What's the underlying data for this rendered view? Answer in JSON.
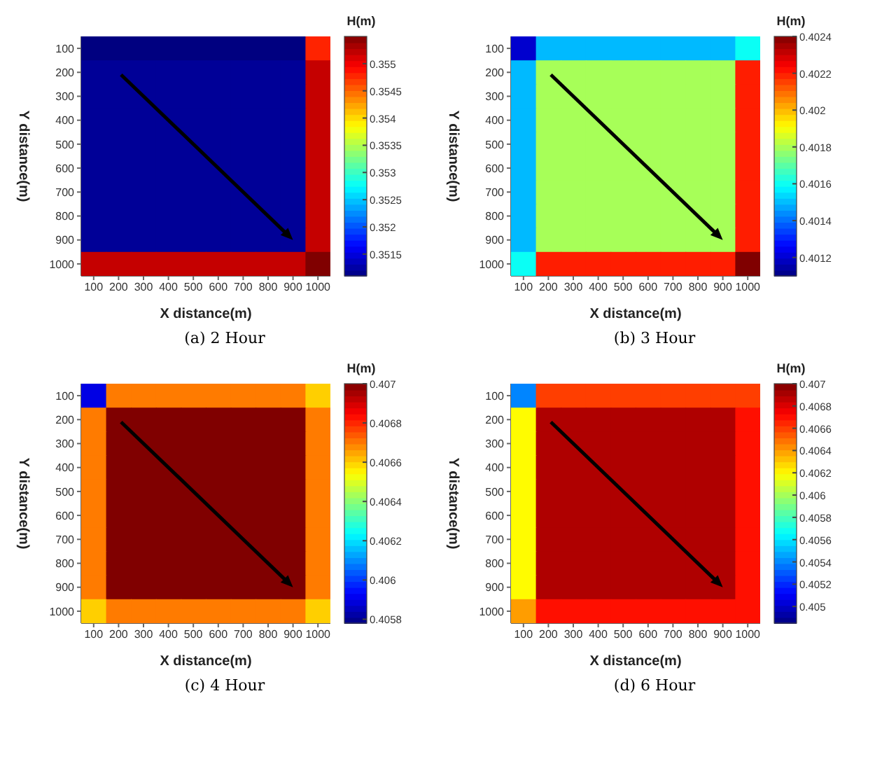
{
  "chart_data": [
    {
      "type": "heatmap",
      "title": "(a) 2 Hour",
      "xlabel": "X distance(m)",
      "ylabel": "Y distance(m)",
      "clabel": "H(m)",
      "categories": [
        "100",
        "200",
        "300",
        "400",
        "500",
        "600",
        "700",
        "800",
        "900",
        "1000"
      ],
      "y_categories": [
        "100",
        "200",
        "300",
        "400",
        "500",
        "600",
        "700",
        "800",
        "900",
        "1000"
      ],
      "clim": [
        0.3511,
        0.3555
      ],
      "cticks": [
        0.3515,
        0.352,
        0.3525,
        0.353,
        0.3535,
        0.354,
        0.3545,
        0.355
      ],
      "cells": [
        [
          0.3511,
          0.3511,
          0.3511,
          0.3511,
          0.3511,
          0.3511,
          0.3511,
          0.3511,
          0.3511,
          0.3548
        ],
        [
          0.3512,
          0.3512,
          0.3512,
          0.3512,
          0.3512,
          0.3512,
          0.3512,
          0.3512,
          0.3512,
          0.3552
        ],
        [
          0.3512,
          0.3512,
          0.3512,
          0.3512,
          0.3512,
          0.3512,
          0.3512,
          0.3512,
          0.3512,
          0.3552
        ],
        [
          0.3512,
          0.3512,
          0.3512,
          0.3512,
          0.3512,
          0.3512,
          0.3512,
          0.3512,
          0.3512,
          0.3552
        ],
        [
          0.3512,
          0.3512,
          0.3512,
          0.3512,
          0.3512,
          0.3512,
          0.3512,
          0.3512,
          0.3512,
          0.3552
        ],
        [
          0.3512,
          0.3512,
          0.3512,
          0.3512,
          0.3512,
          0.3512,
          0.3512,
          0.3512,
          0.3512,
          0.3552
        ],
        [
          0.3512,
          0.3512,
          0.3512,
          0.3512,
          0.3512,
          0.3512,
          0.3512,
          0.3512,
          0.3512,
          0.3552
        ],
        [
          0.3512,
          0.3512,
          0.3512,
          0.3512,
          0.3512,
          0.3512,
          0.3512,
          0.3512,
          0.3512,
          0.3552
        ],
        [
          0.3512,
          0.3512,
          0.3512,
          0.3512,
          0.3512,
          0.3512,
          0.3512,
          0.3512,
          0.3512,
          0.3552
        ],
        [
          0.3552,
          0.3552,
          0.3552,
          0.3552,
          0.3552,
          0.3552,
          0.3552,
          0.3552,
          0.3552,
          0.3555
        ]
      ]
    },
    {
      "type": "heatmap",
      "title": "(b) 3 Hour",
      "xlabel": "X distance(m)",
      "ylabel": "Y distance(m)",
      "clabel": "H(m)",
      "categories": [
        "100",
        "200",
        "300",
        "400",
        "500",
        "600",
        "700",
        "800",
        "900",
        "1000"
      ],
      "y_categories": [
        "100",
        "200",
        "300",
        "400",
        "500",
        "600",
        "700",
        "800",
        "900",
        "1000"
      ],
      "clim": [
        0.4011,
        0.4024
      ],
      "cticks": [
        0.4012,
        0.4014,
        0.4016,
        0.4018,
        0.402,
        0.4022,
        0.4024
      ],
      "cells": [
        [
          0.4012,
          0.4015,
          0.4015,
          0.4015,
          0.4015,
          0.4015,
          0.4015,
          0.4015,
          0.4015,
          0.4016
        ],
        [
          0.4015,
          0.4018,
          0.4018,
          0.4018,
          0.4018,
          0.4018,
          0.4018,
          0.4018,
          0.4018,
          0.4022
        ],
        [
          0.4015,
          0.4018,
          0.4018,
          0.4018,
          0.4018,
          0.4018,
          0.4018,
          0.4018,
          0.4018,
          0.4022
        ],
        [
          0.4015,
          0.4018,
          0.4018,
          0.4018,
          0.4018,
          0.4018,
          0.4018,
          0.4018,
          0.4018,
          0.4022
        ],
        [
          0.4015,
          0.4018,
          0.4018,
          0.4018,
          0.4018,
          0.4018,
          0.4018,
          0.4018,
          0.4018,
          0.4022
        ],
        [
          0.4015,
          0.4018,
          0.4018,
          0.4018,
          0.4018,
          0.4018,
          0.4018,
          0.4018,
          0.4018,
          0.4022
        ],
        [
          0.4015,
          0.4018,
          0.4018,
          0.4018,
          0.4018,
          0.4018,
          0.4018,
          0.4018,
          0.4018,
          0.4022
        ],
        [
          0.4015,
          0.4018,
          0.4018,
          0.4018,
          0.4018,
          0.4018,
          0.4018,
          0.4018,
          0.4018,
          0.4022
        ],
        [
          0.4015,
          0.4018,
          0.4018,
          0.4018,
          0.4018,
          0.4018,
          0.4018,
          0.4018,
          0.4018,
          0.4022
        ],
        [
          0.4016,
          0.4022,
          0.4022,
          0.4022,
          0.4022,
          0.4022,
          0.4022,
          0.4022,
          0.4022,
          0.4024
        ]
      ]
    },
    {
      "type": "heatmap",
      "title": "(c) 4 Hour",
      "xlabel": "X distance(m)",
      "ylabel": "Y distance(m)",
      "clabel": "H(m)",
      "categories": [
        "100",
        "200",
        "300",
        "400",
        "500",
        "600",
        "700",
        "800",
        "900",
        "1000"
      ],
      "y_categories": [
        "100",
        "200",
        "300",
        "400",
        "500",
        "600",
        "700",
        "800",
        "900",
        "1000"
      ],
      "clim": [
        0.40578,
        0.407
      ],
      "cticks": [
        0.4058,
        0.406,
        0.4062,
        0.4064,
        0.4066,
        0.4068,
        0.407
      ],
      "cells": [
        [
          0.4059,
          0.4067,
          0.4067,
          0.4067,
          0.4067,
          0.4067,
          0.4067,
          0.4067,
          0.4067,
          0.4066
        ],
        [
          0.4067,
          0.407,
          0.407,
          0.407,
          0.407,
          0.407,
          0.407,
          0.407,
          0.407,
          0.4067
        ],
        [
          0.4067,
          0.407,
          0.407,
          0.407,
          0.407,
          0.407,
          0.407,
          0.407,
          0.407,
          0.4067
        ],
        [
          0.4067,
          0.407,
          0.407,
          0.407,
          0.407,
          0.407,
          0.407,
          0.407,
          0.407,
          0.4067
        ],
        [
          0.4067,
          0.407,
          0.407,
          0.407,
          0.407,
          0.407,
          0.407,
          0.407,
          0.407,
          0.4067
        ],
        [
          0.4067,
          0.407,
          0.407,
          0.407,
          0.407,
          0.407,
          0.407,
          0.407,
          0.407,
          0.4067
        ],
        [
          0.4067,
          0.407,
          0.407,
          0.407,
          0.407,
          0.407,
          0.407,
          0.407,
          0.407,
          0.4067
        ],
        [
          0.4067,
          0.407,
          0.407,
          0.407,
          0.407,
          0.407,
          0.407,
          0.407,
          0.407,
          0.4067
        ],
        [
          0.4067,
          0.407,
          0.407,
          0.407,
          0.407,
          0.407,
          0.407,
          0.407,
          0.407,
          0.4067
        ],
        [
          0.4066,
          0.4067,
          0.4067,
          0.4067,
          0.4067,
          0.4067,
          0.4067,
          0.4067,
          0.4067,
          0.4066
        ]
      ]
    },
    {
      "type": "heatmap",
      "title": "(d) 6 Hour",
      "xlabel": "X distance(m)",
      "ylabel": "Y distance(m)",
      "clabel": "H(m)",
      "categories": [
        "100",
        "200",
        "300",
        "400",
        "500",
        "600",
        "700",
        "800",
        "900",
        "1000"
      ],
      "y_categories": [
        "100",
        "200",
        "300",
        "400",
        "500",
        "600",
        "700",
        "800",
        "900",
        "1000"
      ],
      "clim": [
        0.40485,
        0.407
      ],
      "cticks": [
        0.405,
        0.4052,
        0.4054,
        0.4056,
        0.4058,
        0.406,
        0.4062,
        0.4064,
        0.4066,
        0.4068,
        0.407
      ],
      "cells": [
        [
          0.4054,
          0.4066,
          0.4066,
          0.4066,
          0.4066,
          0.4066,
          0.4066,
          0.4066,
          0.4066,
          0.4066
        ],
        [
          0.4062,
          0.4069,
          0.4069,
          0.4069,
          0.4069,
          0.4069,
          0.4069,
          0.4069,
          0.4069,
          0.4067
        ],
        [
          0.4062,
          0.4069,
          0.4069,
          0.4069,
          0.4069,
          0.4069,
          0.4069,
          0.4069,
          0.4069,
          0.4067
        ],
        [
          0.4062,
          0.4069,
          0.4069,
          0.4069,
          0.4069,
          0.4069,
          0.4069,
          0.4069,
          0.4069,
          0.4067
        ],
        [
          0.4062,
          0.4069,
          0.4069,
          0.4069,
          0.4069,
          0.4069,
          0.4069,
          0.4069,
          0.4069,
          0.4067
        ],
        [
          0.4062,
          0.4069,
          0.4069,
          0.4069,
          0.4069,
          0.4069,
          0.4069,
          0.4069,
          0.4069,
          0.4067
        ],
        [
          0.4062,
          0.4069,
          0.4069,
          0.4069,
          0.4069,
          0.4069,
          0.4069,
          0.4069,
          0.4069,
          0.4067
        ],
        [
          0.4062,
          0.4069,
          0.4069,
          0.4069,
          0.4069,
          0.4069,
          0.4069,
          0.4069,
          0.4069,
          0.4067
        ],
        [
          0.4062,
          0.4069,
          0.4069,
          0.4069,
          0.4069,
          0.4069,
          0.4069,
          0.4069,
          0.4069,
          0.4067
        ],
        [
          0.4064,
          0.4067,
          0.4067,
          0.4067,
          0.4067,
          0.4067,
          0.4067,
          0.4067,
          0.4067,
          0.4067
        ]
      ]
    }
  ]
}
